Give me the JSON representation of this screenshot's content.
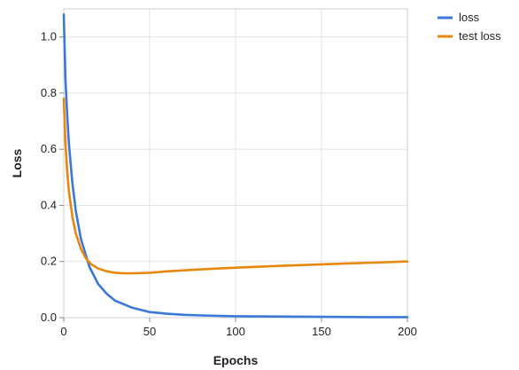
{
  "chart_data": {
    "type": "line",
    "title": "",
    "xlabel": "Epochs",
    "ylabel": "Loss",
    "xlim": [
      0,
      200
    ],
    "ylim": [
      0.0,
      1.1
    ],
    "xticks": [
      0,
      50,
      100,
      150,
      200
    ],
    "xtick_labels": [
      "0",
      "50",
      "100",
      "150",
      "200"
    ],
    "yticks": [
      0.0,
      0.2,
      0.4,
      0.6,
      0.8,
      1.0
    ],
    "ytick_labels": [
      "0.0",
      "0.2",
      "0.4",
      "0.6",
      "0.8",
      "1.0"
    ],
    "grid": true,
    "legend_position": "top-right, outside plot",
    "series": [
      {
        "name": "loss",
        "color": "#3b78d8",
        "x": [
          0,
          1,
          2,
          3,
          5,
          7,
          10,
          15,
          20,
          25,
          30,
          40,
          50,
          60,
          70,
          80,
          100,
          120,
          150,
          180,
          200
        ],
        "y": [
          1.08,
          0.85,
          0.72,
          0.62,
          0.48,
          0.38,
          0.28,
          0.18,
          0.12,
          0.085,
          0.06,
          0.035,
          0.02,
          0.014,
          0.01,
          0.008,
          0.005,
          0.004,
          0.003,
          0.002,
          0.002
        ]
      },
      {
        "name": "test loss",
        "color": "#e8870e",
        "x": [
          0,
          1,
          2,
          3,
          5,
          7,
          10,
          13,
          16,
          20,
          25,
          30,
          35,
          40,
          50,
          60,
          80,
          100,
          120,
          150,
          180,
          200
        ],
        "y": [
          0.78,
          0.62,
          0.52,
          0.45,
          0.36,
          0.3,
          0.245,
          0.21,
          0.19,
          0.175,
          0.165,
          0.16,
          0.158,
          0.158,
          0.16,
          0.165,
          0.172,
          0.178,
          0.183,
          0.19,
          0.196,
          0.2
        ]
      }
    ]
  }
}
